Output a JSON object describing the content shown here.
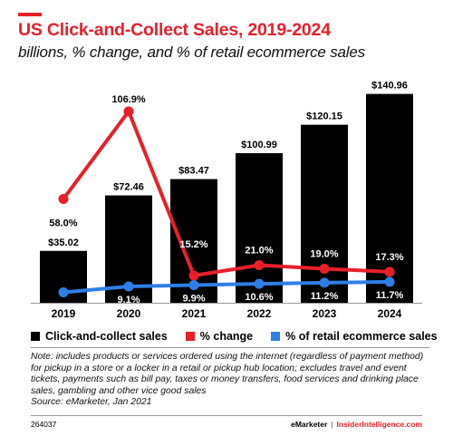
{
  "header": {
    "title": "US Click-and-Collect Sales, 2019-2024",
    "subtitle": "billions, % change, and % of retail ecommerce sales"
  },
  "chart_data": {
    "type": "bar",
    "categories": [
      "2019",
      "2020",
      "2021",
      "2022",
      "2023",
      "2024"
    ],
    "series": [
      {
        "name": "Click-and-collect sales",
        "type": "bar",
        "values": [
          35.02,
          72.46,
          83.47,
          100.99,
          120.15,
          140.96
        ],
        "labels": [
          "$35.02",
          "$72.46",
          "$83.47",
          "$100.99",
          "$120.15",
          "$140.96"
        ],
        "color": "#000000"
      },
      {
        "name": "% change",
        "type": "line",
        "values": [
          58.0,
          106.9,
          15.2,
          21.0,
          19.0,
          17.3
        ],
        "labels": [
          "58.0%",
          "106.9%",
          "15.2%",
          "21.0%",
          "19.0%",
          "17.3%"
        ],
        "color": "#e8202a"
      },
      {
        "name": "% of retail ecommerce sales",
        "type": "line",
        "values": [
          5.8,
          9.1,
          9.9,
          10.6,
          11.2,
          11.7
        ],
        "labels": [
          "5.8%",
          "9.1%",
          "9.9%",
          "10.6%",
          "11.2%",
          "11.7%"
        ],
        "color": "#2f7ee6"
      }
    ],
    "ylim": [
      0,
      145
    ],
    "line_ylim": [
      0,
      120
    ],
    "grid": false,
    "legend_position": "bottom"
  },
  "legend": [
    {
      "label": "Click-and-collect sales",
      "color": "#000000",
      "shape": "square"
    },
    {
      "label": "% change",
      "color": "#e8202a",
      "shape": "square"
    },
    {
      "label": "% of retail ecommerce sales",
      "color": "#2f7ee6",
      "shape": "square"
    }
  ],
  "note": {
    "text": "Note: includes products or services ordered using the internet (regardless of payment method) for pickup in a store or a locker in a retail or pickup hub location; excludes travel and event tickets, payments such as bill pay, taxes or money transfers, food services and drinking place sales, gambling and other vice good sales",
    "source": "Source: eMarketer, Jan 2021"
  },
  "footer": {
    "id": "264037",
    "brand": "eMarketer",
    "separator": "|",
    "site": "InsiderIntelligence.com"
  }
}
